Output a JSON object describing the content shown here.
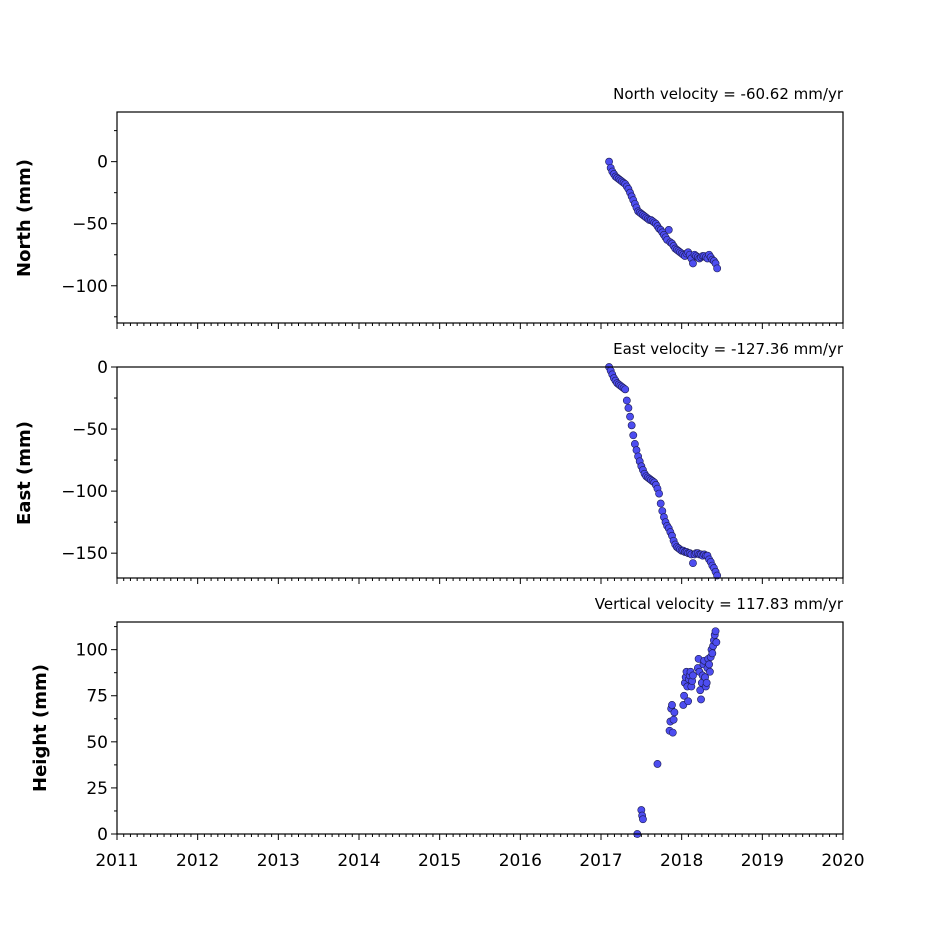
{
  "chart_data": [
    {
      "type": "scatter",
      "title": "North velocity = -60.62 mm/yr",
      "ylabel": "North (mm)",
      "xlim": [
        2011,
        2020
      ],
      "ylim": [
        -130,
        40
      ],
      "yticks": [
        0,
        -50,
        -100
      ],
      "ytick_labels": [
        "0",
        "−50",
        "−100"
      ],
      "marker_color": "#4d4df0",
      "x": [
        2017.1,
        2017.12,
        2017.14,
        2017.16,
        2017.18,
        2017.2,
        2017.22,
        2017.24,
        2017.26,
        2017.28,
        2017.3,
        2017.32,
        2017.34,
        2017.36,
        2017.38,
        2017.4,
        2017.42,
        2017.44,
        2017.46,
        2017.48,
        2017.5,
        2017.52,
        2017.54,
        2017.56,
        2017.58,
        2017.6,
        2017.62,
        2017.64,
        2017.66,
        2017.68,
        2017.7,
        2017.72,
        2017.74,
        2017.76,
        2017.78,
        2017.8,
        2017.82,
        2017.84,
        2017.86,
        2017.88,
        2017.9,
        2017.92,
        2017.94,
        2017.96,
        2017.98,
        2018.0,
        2018.02,
        2018.04,
        2018.06,
        2018.08,
        2018.1,
        2018.12,
        2018.14,
        2018.16,
        2018.18,
        2018.2,
        2018.22,
        2018.24,
        2018.26,
        2018.28,
        2018.3,
        2018.32,
        2018.34,
        2018.36,
        2018.38,
        2018.4,
        2018.42,
        2018.44
      ],
      "y": [
        0,
        -5,
        -8,
        -10,
        -12,
        -13,
        -14,
        -15,
        -16,
        -17,
        -18,
        -20,
        -22,
        -25,
        -28,
        -31,
        -34,
        -37,
        -40,
        -41,
        -42,
        -43,
        -44,
        -45,
        -46,
        -47,
        -47,
        -48,
        -49,
        -50,
        -52,
        -54,
        -55,
        -57,
        -59,
        -61,
        -63,
        -55,
        -65,
        -66,
        -68,
        -70,
        -71,
        -72,
        -73,
        -74,
        -75,
        -76,
        -74,
        -73,
        -75,
        -78,
        -82,
        -75,
        -76,
        -77,
        -78,
        -77,
        -76,
        -76,
        -77,
        -78,
        -75,
        -77,
        -79,
        -80,
        -82,
        -86
      ]
    },
    {
      "type": "scatter",
      "title": "East velocity = -127.36 mm/yr",
      "ylabel": "East (mm)",
      "xlim": [
        2011,
        2020
      ],
      "ylim": [
        -170,
        0
      ],
      "yticks": [
        0,
        -50,
        -100,
        -150
      ],
      "ytick_labels": [
        "0",
        "−50",
        "−100",
        "−150"
      ],
      "marker_color": "#4d4df0",
      "x": [
        2017.1,
        2017.12,
        2017.14,
        2017.16,
        2017.18,
        2017.2,
        2017.22,
        2017.24,
        2017.26,
        2017.28,
        2017.3,
        2017.32,
        2017.34,
        2017.36,
        2017.38,
        2017.4,
        2017.42,
        2017.44,
        2017.46,
        2017.48,
        2017.5,
        2017.52,
        2017.54,
        2017.56,
        2017.58,
        2017.6,
        2017.62,
        2017.64,
        2017.66,
        2017.68,
        2017.7,
        2017.72,
        2017.74,
        2017.76,
        2017.78,
        2017.8,
        2017.82,
        2017.84,
        2017.86,
        2017.88,
        2017.9,
        2017.92,
        2017.94,
        2017.96,
        2017.98,
        2018.0,
        2018.02,
        2018.04,
        2018.06,
        2018.08,
        2018.1,
        2018.12,
        2018.14,
        2018.16,
        2018.18,
        2018.2,
        2018.22,
        2018.24,
        2018.26,
        2018.28,
        2018.3,
        2018.32,
        2018.34,
        2018.36,
        2018.38,
        2018.4,
        2018.42,
        2018.44
      ],
      "y": [
        0,
        -3,
        -6,
        -9,
        -11,
        -13,
        -14,
        -15,
        -16,
        -17,
        -18,
        -27,
        -33,
        -40,
        -47,
        -55,
        -62,
        -67,
        -72,
        -76,
        -80,
        -83,
        -86,
        -88,
        -89,
        -90,
        -91,
        -92,
        -93,
        -95,
        -98,
        -102,
        -110,
        -116,
        -121,
        -125,
        -128,
        -130,
        -133,
        -136,
        -140,
        -143,
        -145,
        -146,
        -147,
        -148,
        -148,
        -149,
        -149,
        -150,
        -150,
        -151,
        -158,
        -151,
        -150,
        -150,
        -151,
        -151,
        -152,
        -151,
        -152,
        -152,
        -155,
        -157,
        -160,
        -162,
        -165,
        -168
      ]
    },
    {
      "type": "scatter",
      "title": "Vertical velocity = 117.83 mm/yr",
      "ylabel": "Height (mm)",
      "xlim": [
        2011,
        2020
      ],
      "ylim": [
        0,
        115
      ],
      "yticks": [
        0,
        25,
        50,
        75,
        100
      ],
      "ytick_labels": [
        "0",
        "25",
        "50",
        "75",
        "100"
      ],
      "xticks": [
        2011,
        2012,
        2013,
        2014,
        2015,
        2016,
        2017,
        2018,
        2019,
        2020
      ],
      "xtick_labels": [
        "2011",
        "2012",
        "2013",
        "2014",
        "2015",
        "2016",
        "2017",
        "2018",
        "2019",
        "2020"
      ],
      "marker_color": "#4d4df0",
      "x": [
        2017.45,
        2017.5,
        2017.51,
        2017.52,
        2017.7,
        2017.85,
        2017.86,
        2017.87,
        2017.88,
        2017.89,
        2017.9,
        2017.91,
        2018.02,
        2018.03,
        2018.04,
        2018.05,
        2018.06,
        2018.07,
        2018.08,
        2018.09,
        2018.1,
        2018.11,
        2018.12,
        2018.13,
        2018.14,
        2018.2,
        2018.21,
        2018.22,
        2018.23,
        2018.24,
        2018.25,
        2018.26,
        2018.27,
        2018.28,
        2018.29,
        2018.3,
        2018.31,
        2018.32,
        2018.33,
        2018.34,
        2018.35,
        2018.36,
        2018.37,
        2018.38,
        2018.39,
        2018.4,
        2018.41,
        2018.42,
        2018.43
      ],
      "y": [
        0,
        13,
        10,
        8,
        38,
        56,
        61,
        68,
        70,
        55,
        62,
        66,
        70,
        75,
        82,
        85,
        88,
        80,
        72,
        84,
        86,
        88,
        80,
        83,
        86,
        90,
        95,
        88,
        78,
        73,
        82,
        86,
        92,
        94,
        85,
        80,
        82,
        90,
        95,
        92,
        88,
        96,
        100,
        98,
        102,
        105,
        108,
        110,
        104
      ]
    }
  ]
}
